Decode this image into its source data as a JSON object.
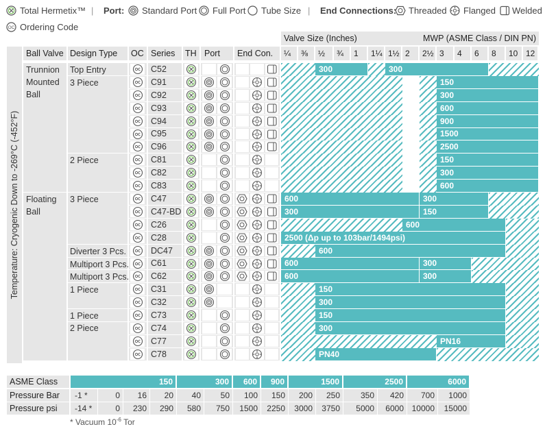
{
  "legend": {
    "total_hermetix": "Total Hermetix™",
    "separator": "|",
    "port_label": "Port:",
    "standard_port": "Standard Port",
    "full_port": "Full Port",
    "tube_size": "Tube Size",
    "end_connections_label": "End Connections:",
    "threaded": "Threaded",
    "flanged": "Flanged",
    "welded": "Welded",
    "ordering_code": "Ordering Code",
    "oc_badge": "OC"
  },
  "headers": {
    "temperature": "Temperature: Cryogenic Down to -269°C (-452°F)",
    "ball_valve": "Ball Valve",
    "design_type": "Design Type",
    "oc": "OC",
    "series": "Series",
    "th": "TH",
    "port": "Port",
    "end_con": "End Con.",
    "valve_size": "Valve Size (Inches)",
    "mwp": "MWP (ASME Class / DIN PN)"
  },
  "sizes": [
    "¼",
    "⅜",
    "½",
    "¾",
    "1",
    "1¼",
    "1½",
    "2",
    "2½",
    "3",
    "4",
    "6",
    "8",
    "10",
    "12"
  ],
  "ball_types": [
    {
      "label": "Trunnion Mounted Ball"
    },
    {
      "label": "Floating Ball"
    }
  ],
  "design_types": [
    {
      "label": "Top Entry"
    },
    {
      "label": "3 Piece"
    },
    {
      "label": "2 Piece"
    },
    {
      "label": "3 Piece"
    },
    {
      "label": "Diverter 3 Pcs."
    },
    {
      "label": "Multiport 3 Pcs."
    },
    {
      "label": "Multiport 3 Pcs."
    },
    {
      "label": "1 Piece"
    },
    {
      "label": "1 Piece"
    },
    {
      "label": "2 Piece"
    }
  ],
  "rows": [
    {
      "series": "C52",
      "th": true,
      "std": false,
      "full": true,
      "tube": false,
      "thr": false,
      "fl": false,
      "wd": true,
      "bars": [
        {
          "from": 2,
          "to": 5,
          "label": "300"
        },
        {
          "from": 6,
          "to": 12,
          "label": "300"
        }
      ],
      "hatch": [
        {
          "from": 0,
          "to": 2
        },
        {
          "from": 5,
          "to": 6
        },
        {
          "from": 12,
          "to": 15
        }
      ]
    },
    {
      "series": "C91",
      "th": true,
      "std": true,
      "full": true,
      "tube": false,
      "thr": false,
      "fl": true,
      "wd": true,
      "bars": [
        {
          "from": 9,
          "to": 15,
          "label": "150"
        }
      ],
      "hatch": [
        {
          "from": 0,
          "to": 7
        },
        {
          "from": 8,
          "to": 9
        }
      ]
    },
    {
      "series": "C92",
      "th": true,
      "std": true,
      "full": true,
      "tube": false,
      "thr": false,
      "fl": true,
      "wd": true,
      "bars": [
        {
          "from": 9,
          "to": 15,
          "label": "300"
        }
      ],
      "hatch": [
        {
          "from": 0,
          "to": 7
        },
        {
          "from": 8,
          "to": 9
        }
      ]
    },
    {
      "series": "C93",
      "th": true,
      "std": true,
      "full": true,
      "tube": false,
      "thr": false,
      "fl": true,
      "wd": true,
      "bars": [
        {
          "from": 9,
          "to": 15,
          "label": "600"
        }
      ],
      "hatch": [
        {
          "from": 0,
          "to": 7
        },
        {
          "from": 8,
          "to": 9
        }
      ]
    },
    {
      "series": "C94",
      "th": true,
      "std": true,
      "full": true,
      "tube": false,
      "thr": false,
      "fl": true,
      "wd": true,
      "bars": [
        {
          "from": 9,
          "to": 15,
          "label": "900"
        }
      ],
      "hatch": [
        {
          "from": 0,
          "to": 7
        },
        {
          "from": 8,
          "to": 9
        }
      ]
    },
    {
      "series": "C95",
      "th": true,
      "std": true,
      "full": true,
      "tube": false,
      "thr": false,
      "fl": true,
      "wd": true,
      "bars": [
        {
          "from": 9,
          "to": 15,
          "label": "1500"
        }
      ],
      "hatch": [
        {
          "from": 0,
          "to": 7
        },
        {
          "from": 8,
          "to": 9
        }
      ]
    },
    {
      "series": "C96",
      "th": true,
      "std": true,
      "full": true,
      "tube": false,
      "thr": false,
      "fl": true,
      "wd": true,
      "bars": [
        {
          "from": 9,
          "to": 15,
          "label": "2500"
        }
      ],
      "hatch": [
        {
          "from": 0,
          "to": 7
        },
        {
          "from": 8,
          "to": 9
        }
      ]
    },
    {
      "series": "C81",
      "th": true,
      "std": false,
      "full": true,
      "tube": false,
      "thr": false,
      "fl": true,
      "wd": false,
      "bars": [
        {
          "from": 9,
          "to": 15,
          "label": "150"
        }
      ],
      "hatch": [
        {
          "from": 0,
          "to": 7
        },
        {
          "from": 8,
          "to": 9
        }
      ]
    },
    {
      "series": "C82",
      "th": true,
      "std": false,
      "full": true,
      "tube": false,
      "thr": false,
      "fl": true,
      "wd": false,
      "bars": [
        {
          "from": 9,
          "to": 15,
          "label": "300"
        }
      ],
      "hatch": [
        {
          "from": 0,
          "to": 7
        },
        {
          "from": 8,
          "to": 9
        }
      ]
    },
    {
      "series": "C83",
      "th": true,
      "std": false,
      "full": true,
      "tube": false,
      "thr": false,
      "fl": true,
      "wd": false,
      "bars": [
        {
          "from": 9,
          "to": 15,
          "label": "600"
        }
      ],
      "hatch": [
        {
          "from": 0,
          "to": 7
        },
        {
          "from": 8,
          "to": 9
        }
      ]
    },
    {
      "series": "C47",
      "th": true,
      "std": true,
      "full": true,
      "tube": false,
      "thr": true,
      "fl": true,
      "wd": true,
      "bars": [
        {
          "from": 0,
          "to": 8,
          "label": "600"
        },
        {
          "from": 8,
          "to": 12,
          "label": "300"
        }
      ],
      "hatch": [
        {
          "from": 12,
          "to": 15
        }
      ]
    },
    {
      "series": "C47-BD",
      "th": true,
      "std": true,
      "full": true,
      "tube": false,
      "thr": true,
      "fl": true,
      "wd": true,
      "bars": [
        {
          "from": 0,
          "to": 8,
          "label": "300"
        },
        {
          "from": 8,
          "to": 12,
          "label": "150"
        }
      ],
      "hatch": [
        {
          "from": 12,
          "to": 15
        }
      ]
    },
    {
      "series": "C26",
      "th": true,
      "std": false,
      "full": true,
      "tube": false,
      "thr": true,
      "fl": true,
      "wd": true,
      "bars": [
        {
          "from": 7,
          "to": 13,
          "label": "600"
        }
      ],
      "hatch": [
        {
          "from": 0,
          "to": 7
        },
        {
          "from": 13,
          "to": 15
        }
      ]
    },
    {
      "series": "C28",
      "th": true,
      "std": false,
      "full": true,
      "tube": false,
      "thr": true,
      "fl": true,
      "wd": true,
      "bars": [
        {
          "from": 0,
          "to": 13,
          "label": "2500 (Δp up to 103bar/1494psi)"
        }
      ],
      "hatch": [
        {
          "from": 13,
          "to": 15
        }
      ]
    },
    {
      "series": "DC47",
      "th": true,
      "std": true,
      "full": true,
      "tube": false,
      "thr": true,
      "fl": true,
      "wd": true,
      "bars": [
        {
          "from": 2,
          "to": 13,
          "label": "600"
        }
      ],
      "hatch": [
        {
          "from": 0,
          "to": 2
        },
        {
          "from": 13,
          "to": 15
        }
      ]
    },
    {
      "series": "C61",
      "th": true,
      "std": true,
      "full": true,
      "tube": false,
      "thr": true,
      "fl": true,
      "wd": true,
      "bars": [
        {
          "from": 0,
          "to": 8,
          "label": "600"
        },
        {
          "from": 8,
          "to": 11,
          "label": "300"
        }
      ],
      "hatch": [
        {
          "from": 11,
          "to": 15
        }
      ]
    },
    {
      "series": "C62",
      "th": true,
      "std": true,
      "full": true,
      "tube": false,
      "thr": true,
      "fl": true,
      "wd": true,
      "bars": [
        {
          "from": 0,
          "to": 8,
          "label": "600"
        },
        {
          "from": 8,
          "to": 11,
          "label": "300"
        }
      ],
      "hatch": [
        {
          "from": 11,
          "to": 15
        }
      ]
    },
    {
      "series": "C31",
      "th": true,
      "std": true,
      "full": false,
      "tube": false,
      "thr": false,
      "fl": true,
      "wd": false,
      "bars": [
        {
          "from": 2,
          "to": 13,
          "label": "150"
        }
      ],
      "hatch": [
        {
          "from": 0,
          "to": 2
        },
        {
          "from": 13,
          "to": 15
        }
      ]
    },
    {
      "series": "C32",
      "th": true,
      "std": true,
      "full": false,
      "tube": false,
      "thr": false,
      "fl": true,
      "wd": false,
      "bars": [
        {
          "from": 2,
          "to": 13,
          "label": "300"
        }
      ],
      "hatch": [
        {
          "from": 0,
          "to": 2
        },
        {
          "from": 13,
          "to": 15
        }
      ]
    },
    {
      "series": "C73",
      "th": true,
      "std": false,
      "full": true,
      "tube": false,
      "thr": false,
      "fl": true,
      "wd": false,
      "bars": [
        {
          "from": 2,
          "to": 13,
          "label": "150"
        }
      ],
      "hatch": [
        {
          "from": 0,
          "to": 2
        },
        {
          "from": 13,
          "to": 15
        }
      ]
    },
    {
      "series": "C74",
      "th": true,
      "std": false,
      "full": true,
      "tube": false,
      "thr": false,
      "fl": true,
      "wd": false,
      "bars": [
        {
          "from": 2,
          "to": 13,
          "label": "300"
        }
      ],
      "hatch": [
        {
          "from": 0,
          "to": 2
        },
        {
          "from": 13,
          "to": 15
        }
      ]
    },
    {
      "series": "C77",
      "th": true,
      "std": false,
      "full": true,
      "tube": false,
      "thr": false,
      "fl": true,
      "wd": false,
      "bars": [
        {
          "from": 9,
          "to": 13,
          "label": "PN16"
        }
      ],
      "hatch": [
        {
          "from": 0,
          "to": 9
        },
        {
          "from": 13,
          "to": 15
        }
      ]
    },
    {
      "series": "C78",
      "th": true,
      "std": false,
      "full": true,
      "tube": false,
      "thr": false,
      "fl": true,
      "wd": false,
      "bars": [
        {
          "from": 2,
          "to": 9,
          "label": "PN40"
        }
      ],
      "hatch": [
        {
          "from": 0,
          "to": 2
        },
        {
          "from": 9,
          "to": 15
        }
      ]
    }
  ],
  "pressure": {
    "asme_label": "ASME Class",
    "bar_label": "Pressure Bar",
    "psi_label": "Pressure psi",
    "classes": [
      "150",
      "300",
      "600",
      "900",
      "1500",
      "2500",
      "6000"
    ],
    "bar_values": [
      "-1 *",
      "0",
      "16",
      "20",
      "40",
      "50",
      "100",
      "150",
      "200",
      "250",
      "350",
      "420",
      "700",
      "1000"
    ],
    "psi_values": [
      "-14 *",
      "0",
      "230",
      "290",
      "580",
      "750",
      "1500",
      "2250",
      "3000",
      "3750",
      "5000",
      "6000",
      "10000",
      "15000"
    ],
    "footnote_prefix": "* Vacuum 10",
    "footnote_exp": "-6",
    "footnote_unit": " Tor"
  },
  "colors": {
    "accent": "#56bbc0",
    "header_bg": "#e6e6e6",
    "icon": "#555555"
  }
}
